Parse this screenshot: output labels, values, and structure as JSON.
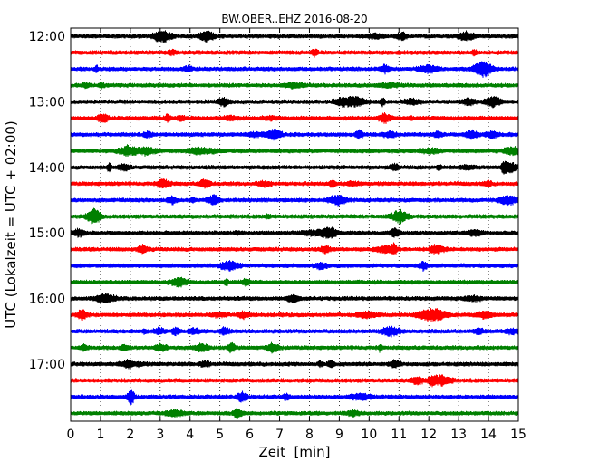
{
  "chart_data": {
    "type": "line",
    "title": "BW.OBER..EHZ 2016-08-20",
    "xlabel": "Zeit  [min]",
    "ylabel": "UTC (Lokalzeit = UTC + 02:00)",
    "xlim": [
      0,
      15
    ],
    "x_ticks": [
      "0",
      "1",
      "2",
      "3",
      "4",
      "5",
      "6",
      "7",
      "8",
      "9",
      "10",
      "11",
      "12",
      "13",
      "14",
      "15"
    ],
    "y_ticks": [
      "12:00",
      "13:00",
      "14:00",
      "15:00",
      "16:00",
      "17:00"
    ],
    "grid": "vertical dotted",
    "trace_colors": [
      "#000000",
      "#ff0000",
      "#0000ff",
      "#008000"
    ],
    "series": [
      {
        "start": "12:00",
        "color": "#000000"
      },
      {
        "start": "12:15",
        "color": "#ff0000"
      },
      {
        "start": "12:30",
        "color": "#0000ff"
      },
      {
        "start": "12:45",
        "color": "#008000"
      },
      {
        "start": "13:00",
        "color": "#000000"
      },
      {
        "start": "13:15",
        "color": "#ff0000"
      },
      {
        "start": "13:30",
        "color": "#0000ff"
      },
      {
        "start": "13:45",
        "color": "#008000"
      },
      {
        "start": "14:00",
        "color": "#000000"
      },
      {
        "start": "14:15",
        "color": "#ff0000"
      },
      {
        "start": "14:30",
        "color": "#0000ff"
      },
      {
        "start": "14:45",
        "color": "#008000"
      },
      {
        "start": "15:00",
        "color": "#000000"
      },
      {
        "start": "15:15",
        "color": "#ff0000"
      },
      {
        "start": "15:30",
        "color": "#0000ff"
      },
      {
        "start": "15:45",
        "color": "#008000"
      },
      {
        "start": "16:00",
        "color": "#000000"
      },
      {
        "start": "16:15",
        "color": "#ff0000"
      },
      {
        "start": "16:30",
        "color": "#0000ff"
      },
      {
        "start": "16:45",
        "color": "#008000"
      },
      {
        "start": "17:00",
        "color": "#000000"
      },
      {
        "start": "17:15",
        "color": "#ff0000"
      },
      {
        "start": "17:30",
        "color": "#0000ff"
      },
      {
        "start": "17:45",
        "color": "#008000"
      }
    ]
  }
}
